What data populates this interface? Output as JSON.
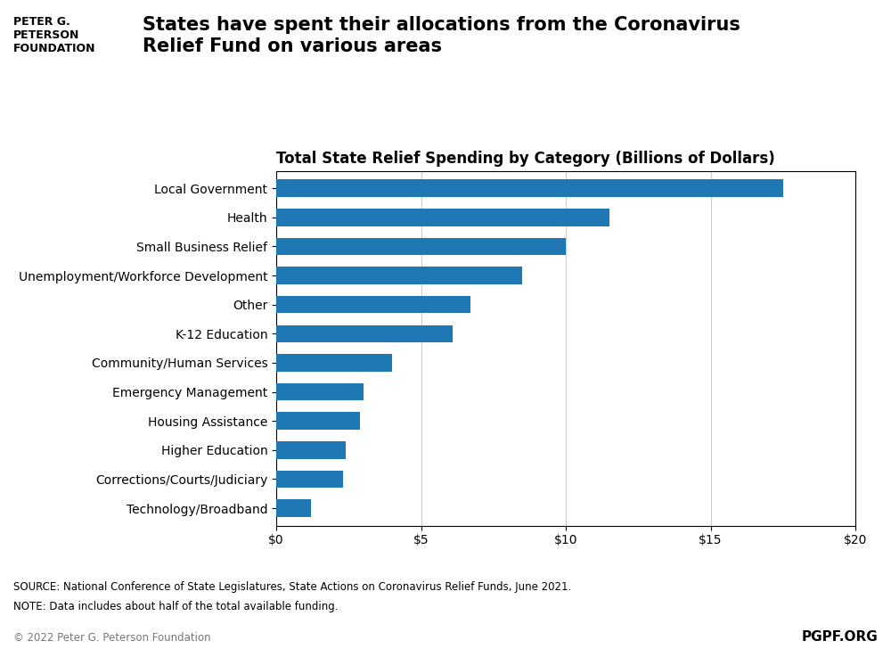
{
  "chart_data": {
    "type": "bar",
    "orientation": "horizontal",
    "title": "Total State Relief Spending by Category (Billions of Dollars)",
    "subtitle": "States have spent their allocations from the Coronavirus\nRelief Fund on various areas",
    "categories": [
      "Technology/Broadband",
      "Corrections/Courts/Judiciary",
      "Higher Education",
      "Housing Assistance",
      "Emergency Management",
      "Community/Human Services",
      "K-12 Education",
      "Other",
      "Unemployment/Workforce Development",
      "Small Business Relief",
      "Health",
      "Local Government"
    ],
    "values": [
      1.2,
      2.3,
      2.4,
      2.9,
      3.0,
      4.0,
      6.1,
      6.7,
      8.5,
      10.0,
      11.5,
      17.5
    ],
    "xlim": [
      0,
      20
    ],
    "xticks": [
      {
        "value": 0,
        "label": "$0"
      },
      {
        "value": 5,
        "label": "$5"
      },
      {
        "value": 10,
        "label": "$10"
      },
      {
        "value": 15,
        "label": "$15"
      },
      {
        "value": 20,
        "label": "$20"
      }
    ],
    "grid": true,
    "annotations": [
      "PETER G.\nPETERSON\nFOUNDATION",
      "SOURCE: National Conference of State Legislatures, State Actions on Coronavirus Relief Funds, June 2021.",
      "NOTE: Data includes about half of the total available funding.",
      "© 2022 Peter G. Peterson Foundation",
      "PGPF.ORG"
    ]
  }
}
